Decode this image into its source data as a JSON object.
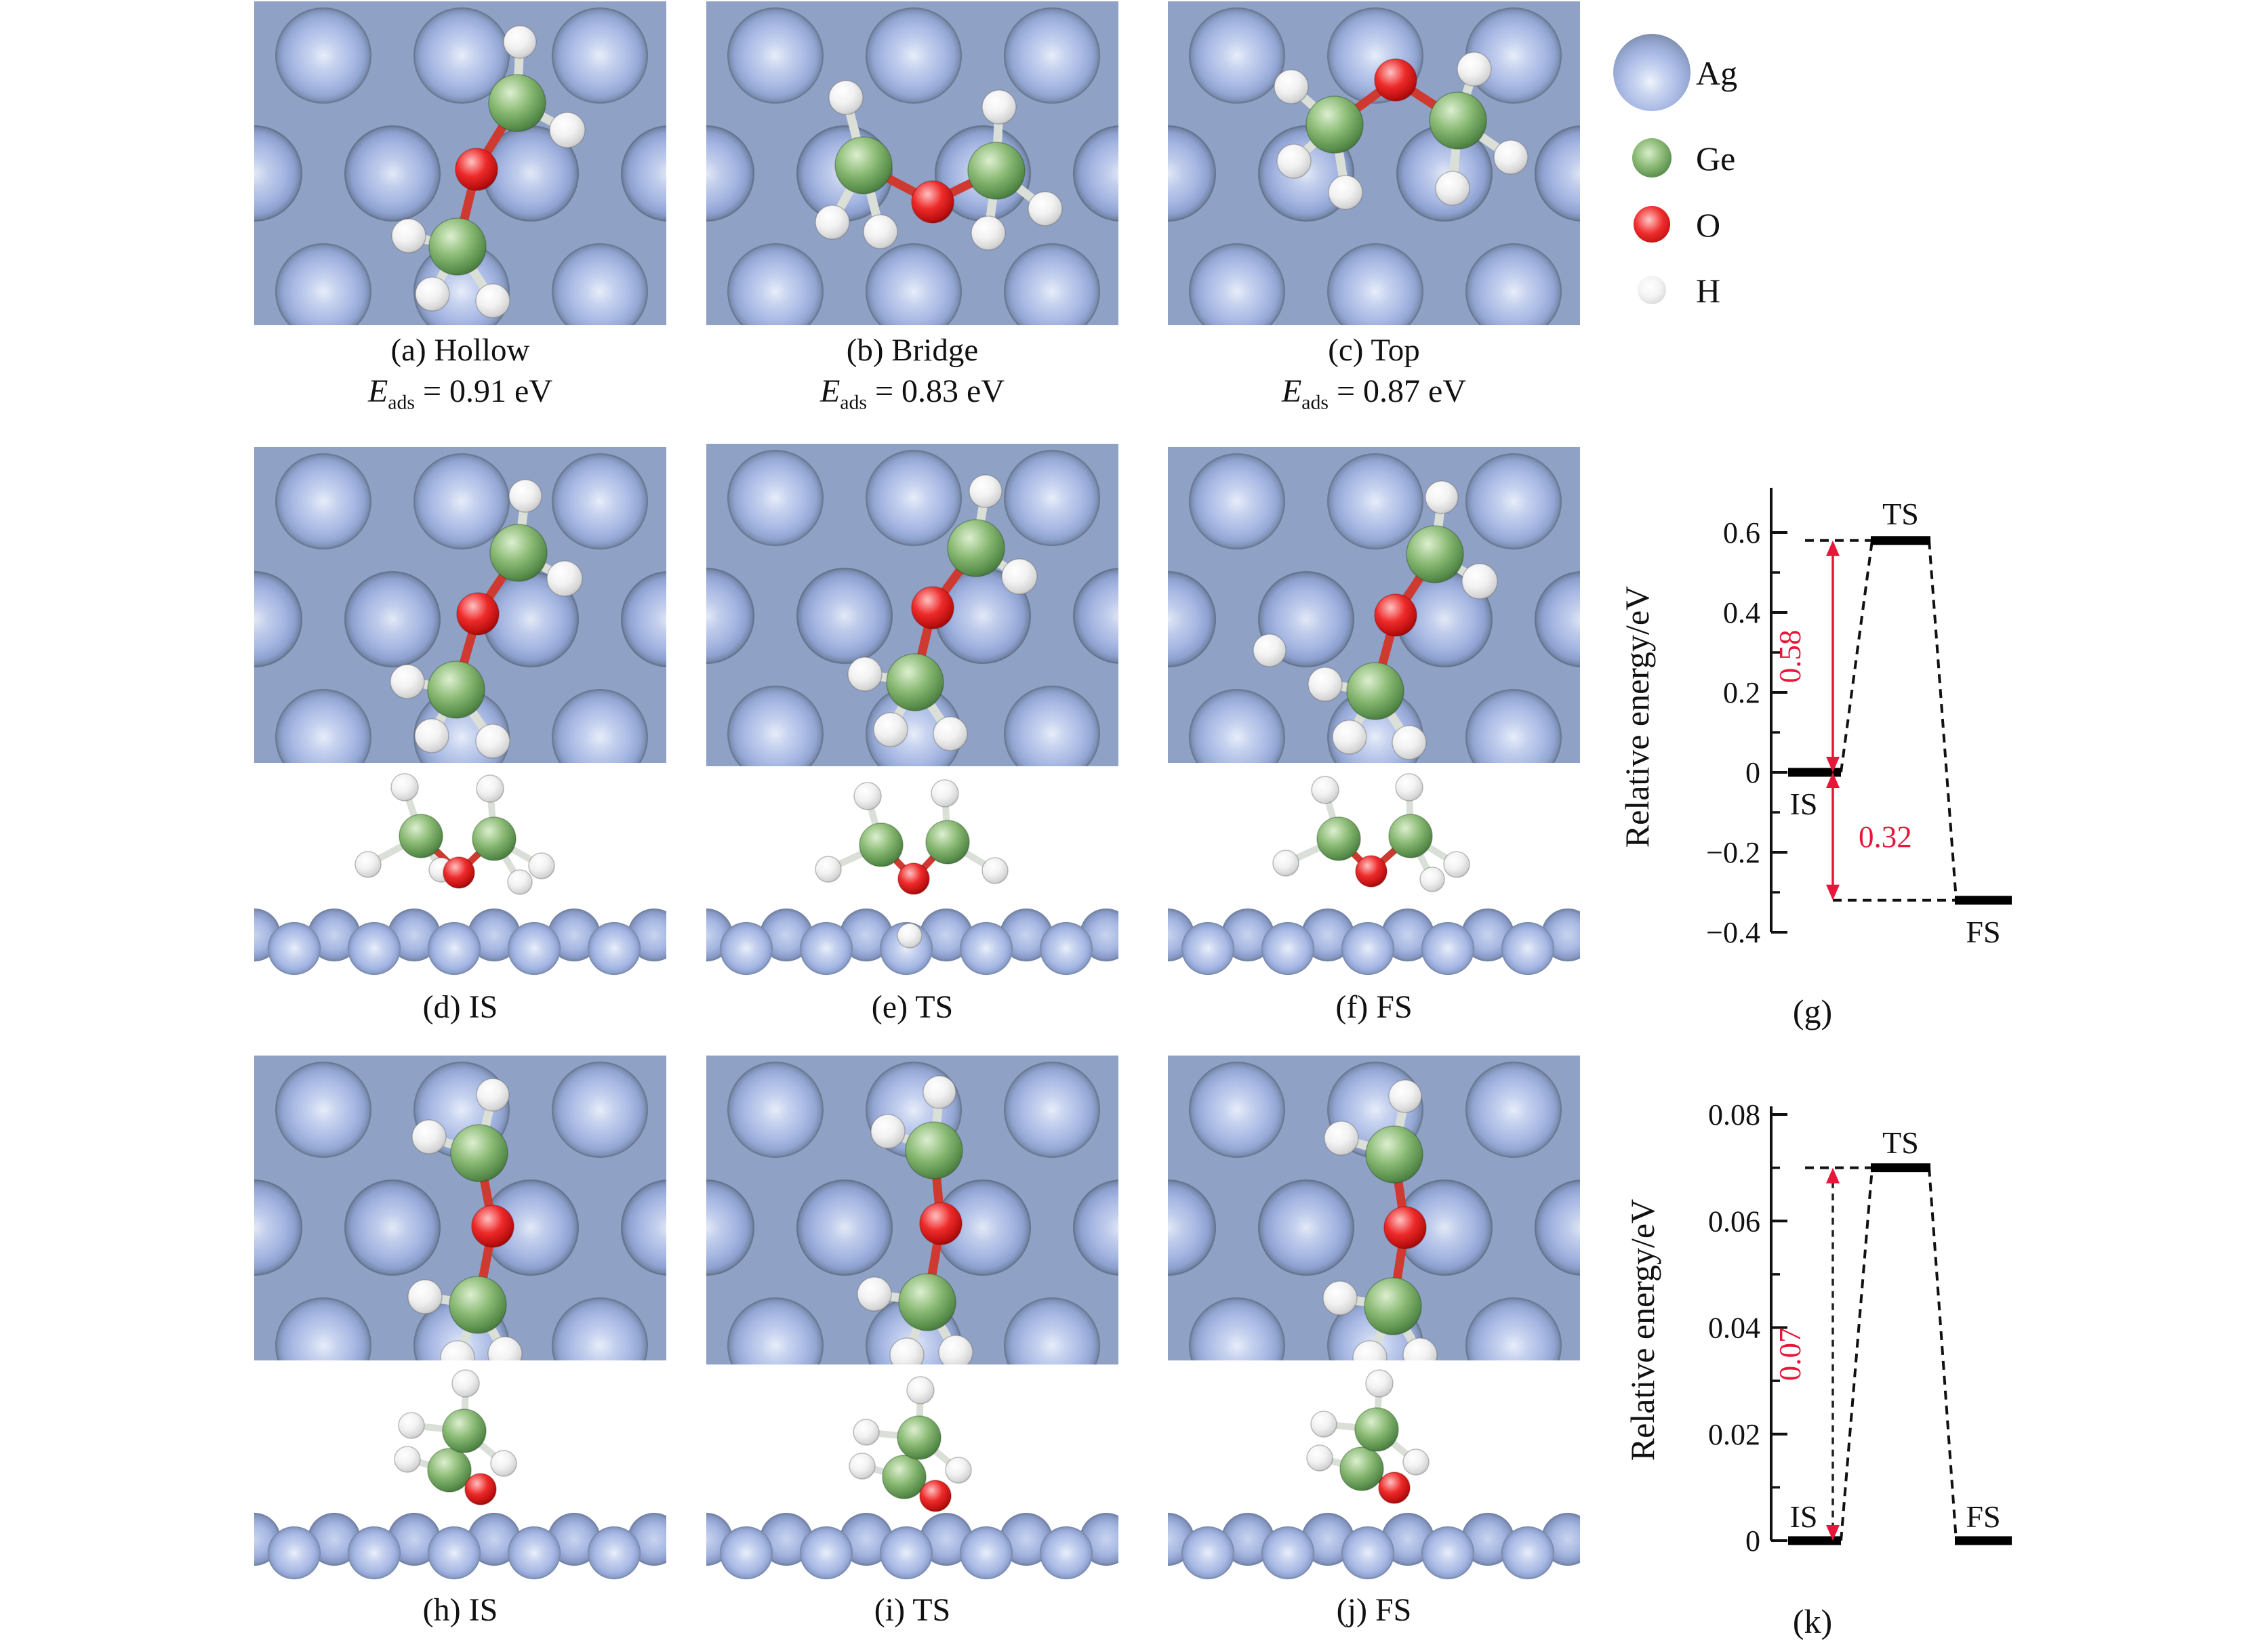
{
  "figure": {
    "legend": {
      "items": [
        {
          "label": "Ag"
        },
        {
          "label": "Ge"
        },
        {
          "label": "O"
        },
        {
          "label": "H"
        }
      ],
      "colors": {
        "Ag": "#a9b9e2",
        "Ge": "#76a364",
        "O": "#e01818",
        "H": "#f2f2f2"
      }
    },
    "row1": {
      "panels": [
        {
          "caption": "(a) Hollow",
          "e_symbol": "E",
          "e_sub": "ads",
          "e_value": "= 0.91 eV"
        },
        {
          "caption": "(b) Bridge",
          "e_symbol": "E",
          "e_sub": "ads",
          "e_value": "= 0.83 eV"
        },
        {
          "caption": "(c) Top",
          "e_symbol": "E",
          "e_sub": "ads",
          "e_value": "= 0.87 eV"
        }
      ]
    },
    "row2": {
      "panels": [
        {
          "caption": "(d) IS"
        },
        {
          "caption": "(e) TS"
        },
        {
          "caption": "(f) FS"
        }
      ]
    },
    "row3": {
      "panels": [
        {
          "caption": "(h) IS"
        },
        {
          "caption": "(i) TS"
        },
        {
          "caption": "(j) FS"
        }
      ]
    }
  },
  "chart_data": [
    {
      "id": "g",
      "type": "energy-profile",
      "caption": "(g)",
      "ylabel": "Relative energy/eV",
      "ylim": [
        -0.4,
        0.66
      ],
      "yticks": [
        0.6,
        0.4,
        0.2,
        0,
        -0.2,
        -0.4
      ],
      "ytick_labels": [
        "0.6",
        "0.4",
        "0.2",
        "0",
        "−0.2",
        "−0.4"
      ],
      "yticks_minor": [
        0.5,
        0.3,
        0.1,
        -0.1,
        -0.3
      ],
      "levels": [
        {
          "label": "IS",
          "energy": 0
        },
        {
          "label": "TS",
          "energy": 0.58
        },
        {
          "label": "FS",
          "energy": -0.32
        }
      ],
      "barriers": [
        {
          "text": "0.58",
          "from": 0,
          "to": 0.58
        },
        {
          "text": "0.32",
          "from": 0,
          "to": -0.32
        }
      ],
      "accent_color": "#e8173a",
      "grid": false,
      "legend_position": "none"
    },
    {
      "id": "k",
      "type": "energy-profile",
      "caption": "(k)",
      "ylabel": "Relative energy/eV",
      "ylim": [
        0,
        0.08
      ],
      "yticks": [
        0.08,
        0.06,
        0.04,
        0.02,
        0
      ],
      "ytick_labels": [
        "0.08",
        "0.06",
        "0.04",
        "0.02",
        "0"
      ],
      "yticks_minor": [
        0.07,
        0.05,
        0.03,
        0.01
      ],
      "levels": [
        {
          "label": "IS",
          "energy": 0
        },
        {
          "label": "TS",
          "energy": 0.07
        },
        {
          "label": "FS",
          "energy": 0
        }
      ],
      "barriers": [
        {
          "text": "0.07",
          "from": 0,
          "to": 0.07
        }
      ],
      "accent_color": "#e8173a",
      "grid": false,
      "legend_position": "none"
    }
  ]
}
